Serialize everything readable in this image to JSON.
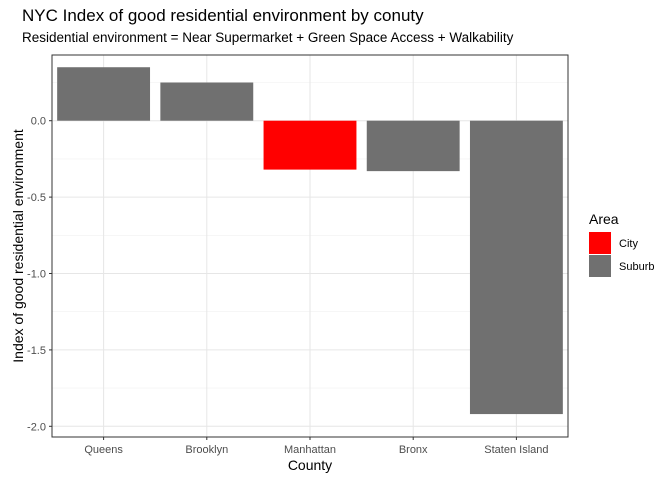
{
  "chart_data": {
    "type": "bar",
    "title": "NYC Index of good residential environment by conuty",
    "subtitle": "Residential environment = Near Supermarket + Green Space Access + Walkability",
    "xlabel": "County",
    "ylabel": "Index of good residential environment",
    "categories": [
      "Queens",
      "Brooklyn",
      "Manhattan",
      "Bronx",
      "Staten Island"
    ],
    "values": [
      0.35,
      0.25,
      -0.32,
      -0.33,
      -1.92
    ],
    "groups": [
      "Suburb",
      "Suburb",
      "City",
      "Suburb",
      "Suburb"
    ],
    "ylim": [
      -2.07,
      0.43
    ],
    "yticks": [
      -2.0,
      -1.5,
      -1.0,
      -0.5,
      0.0
    ],
    "ytick_labels": [
      "-2.0",
      "-1.5",
      "-1.0",
      "-0.5",
      "0.0"
    ],
    "grid": true,
    "legend": {
      "title": "Area",
      "position": "right",
      "entries": [
        {
          "label": "City",
          "color": "#ff0000"
        },
        {
          "label": "Suburb",
          "color": "#707070"
        }
      ]
    },
    "colors": {
      "City": "#ff0000",
      "Suburb": "#707070"
    }
  }
}
